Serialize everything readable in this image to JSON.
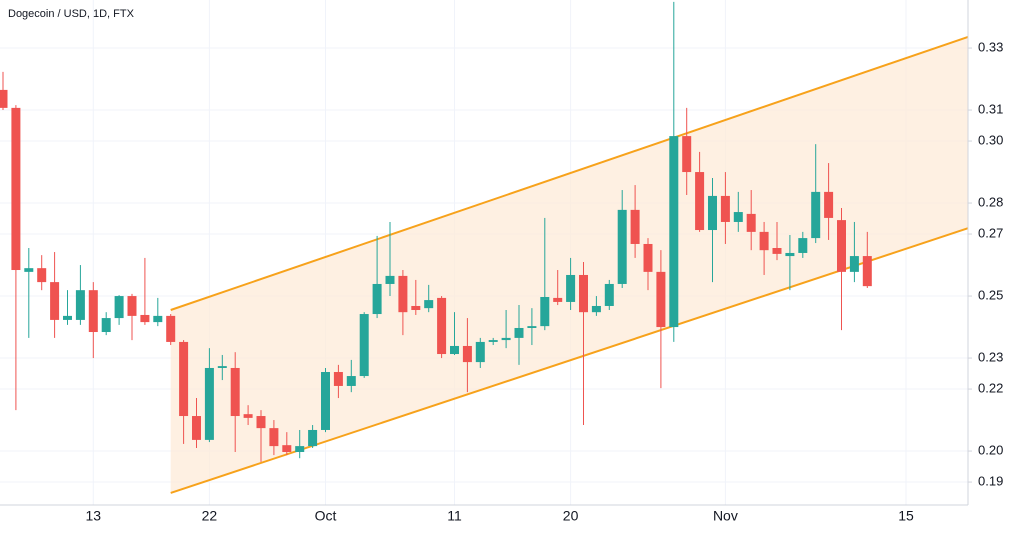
{
  "chart_data": {
    "type": "candlestick",
    "title": "Dogecoin / USD, 1D, FTX",
    "categories": [
      null,
      null,
      null,
      null,
      null,
      null,
      null,
      "13",
      null,
      null,
      null,
      null,
      null,
      null,
      null,
      null,
      "22",
      null,
      null,
      null,
      null,
      null,
      null,
      null,
      null,
      "Oct",
      null,
      null,
      null,
      null,
      null,
      null,
      null,
      null,
      null,
      "11",
      null,
      null,
      null,
      null,
      null,
      null,
      null,
      null,
      "20",
      null,
      null,
      null,
      null,
      null,
      null,
      null,
      null,
      null,
      null,
      null,
      "Nov",
      null,
      null,
      null,
      null,
      null,
      null,
      null,
      null,
      null,
      null,
      null,
      null,
      null,
      "15",
      null,
      null,
      null,
      null
    ],
    "open": [
      0.3165,
      0.3107,
      0.2578,
      0.259,
      0.2545,
      0.2423,
      0.2423,
      0.2519,
      0.2384,
      0.2429,
      0.25,
      0.2439,
      0.2416,
      0.2436,
      0.2352,
      0.2113,
      0.2036,
      0.2268,
      0.2268,
      0.2119,
      0.2113,
      0.2074,
      0.2019,
      0.1997,
      0.2016,
      0.2068,
      0.2255,
      0.221,
      0.2242,
      0.2442,
      0.2539,
      0.2565,
      0.2468,
      0.2461,
      0.2494,
      0.2313,
      0.2339,
      0.2287,
      0.2352,
      0.2358,
      0.2365,
      0.2397,
      0.2403,
      0.2494,
      0.2481,
      0.2568,
      0.2448,
      0.2468,
      0.2539,
      0.2778,
      0.2668,
      0.2578,
      0.24,
      0.3016,
      0.29,
      0.2713,
      0.2823,
      0.2739,
      0.2765,
      0.2707,
      0.2655,
      0.2629,
      0.2639,
      0.2687,
      0.2836,
      0.2745,
      0.2578,
      0.2629,
      null,
      null,
      null,
      null,
      null,
      null,
      null
    ],
    "high": [
      0.3223,
      0.3116,
      0.2655,
      0.2632,
      0.2642,
      0.2519,
      0.26,
      0.2545,
      0.2448,
      0.2503,
      0.2507,
      0.2623,
      0.2494,
      0.2442,
      0.2358,
      0.2171,
      0.2332,
      0.231,
      0.2319,
      0.2148,
      0.2132,
      0.21,
      0.2061,
      0.2068,
      0.2084,
      0.2268,
      0.2278,
      0.2294,
      0.2448,
      0.2694,
      0.2739,
      0.2584,
      0.2552,
      0.2536,
      0.25,
      0.2448,
      0.2429,
      0.2365,
      0.2365,
      0.2455,
      0.2471,
      0.2461,
      0.2752,
      0.2584,
      0.2623,
      0.261,
      0.25,
      0.2552,
      0.2842,
      0.2858,
      0.2687,
      0.2648,
      0.3449,
      0.3107,
      0.2965,
      0.2881,
      0.29,
      0.2836,
      0.2842,
      0.2739,
      0.2739,
      0.2697,
      0.2707,
      0.299,
      0.2929,
      0.2784,
      0.2739,
      0.2707,
      null,
      null,
      null,
      null,
      null,
      null,
      null
    ],
    "low": [
      0.31,
      0.2132,
      0.2365,
      0.2519,
      0.2365,
      0.2407,
      0.2407,
      0.23,
      0.2374,
      0.2407,
      0.2358,
      0.2407,
      0.2403,
      0.2342,
      0.2023,
      0.201,
      0.2029,
      0.2229,
      0.1997,
      0.2084,
      0.1965,
      0.1987,
      0.1987,
      0.1977,
      0.201,
      0.2061,
      0.2171,
      0.219,
      0.2236,
      0.2429,
      0.25,
      0.2374,
      0.2439,
      0.2448,
      0.23,
      0.231,
      0.219,
      0.2268,
      0.2342,
      0.2332,
      0.2278,
      0.2342,
      0.239,
      0.2471,
      0.2455,
      0.2084,
      0.2436,
      0.2455,
      0.2526,
      0.2623,
      0.2519,
      0.2203,
      0.2352,
      0.2826,
      0.2707,
      0.2545,
      0.2668,
      0.2707,
      0.2648,
      0.2568,
      0.2616,
      0.2519,
      0.2623,
      0.2671,
      0.2681,
      0.239,
      0.2545,
      0.2526,
      null,
      null,
      null,
      null,
      null,
      null,
      null
    ],
    "close": [
      0.3107,
      0.2584,
      0.259,
      0.2545,
      0.2423,
      0.2436,
      0.2519,
      0.2384,
      0.2429,
      0.25,
      0.2436,
      0.2416,
      0.2436,
      0.2352,
      0.2113,
      0.2036,
      0.2268,
      0.2274,
      0.2113,
      0.2107,
      0.2074,
      0.2016,
      0.1997,
      0.2016,
      0.2068,
      0.2255,
      0.221,
      0.2242,
      0.2442,
      0.2539,
      0.2565,
      0.2448,
      0.2455,
      0.2487,
      0.2313,
      0.2339,
      0.2287,
      0.2352,
      0.2358,
      0.2365,
      0.2397,
      0.2403,
      0.2497,
      0.2481,
      0.2568,
      0.2448,
      0.2468,
      0.2539,
      0.2778,
      0.2668,
      0.2578,
      0.24,
      0.3016,
      0.29,
      0.2713,
      0.2823,
      0.2739,
      0.2771,
      0.2707,
      0.2648,
      0.2636,
      0.2639,
      0.2687,
      0.2836,
      0.2752,
      0.2578,
      0.2629,
      0.2532,
      null,
      null,
      null,
      null,
      null,
      null,
      null
    ],
    "up_color": "#26a69a",
    "down_color": "#ef5350",
    "ylim": [
      0.1826,
      0.3455
    ],
    "yticks": [
      0.19,
      {
        "value": 0.2,
        "label": "0.20"
      },
      0.22,
      0.23,
      0.25,
      0.27,
      0.28,
      {
        "value": 0.3,
        "label": "0.30"
      },
      0.31,
      0.33
    ],
    "grid": true,
    "channel": {
      "upper": [
        0.2455,
        0.3336
      ],
      "lower": [
        0.1865,
        0.2719
      ],
      "color": "#f7a21b",
      "fill": "#fde9d6"
    }
  }
}
